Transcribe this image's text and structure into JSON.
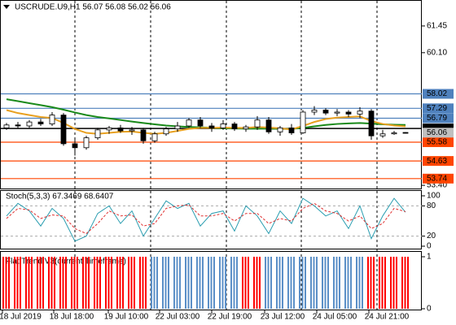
{
  "chart_data": [
    {
      "type": "candlestick",
      "title": "USCRUDE.U9,H1  56.07 56.08 56.02 56.06",
      "open": [
        56.3,
        56.45,
        56.4,
        56.6,
        56.5,
        56.95,
        55.5,
        55.3,
        55.8,
        56.2,
        56.3,
        56.15,
        56.2,
        55.65,
        56.0,
        56.25,
        56.4,
        56.7,
        56.4,
        56.3,
        56.5,
        56.25,
        56.35,
        56.7,
        56.1,
        56.3,
        56.05,
        57.1,
        57.2,
        57.05,
        57.1,
        57.0,
        57.15,
        55.9,
        56.0,
        56.07
      ],
      "high": [
        56.55,
        56.6,
        56.7,
        56.75,
        57.1,
        57.05,
        55.7,
        55.9,
        56.3,
        56.4,
        56.45,
        56.35,
        56.3,
        56.1,
        56.35,
        56.6,
        56.8,
        56.85,
        56.55,
        56.7,
        56.6,
        56.45,
        56.9,
        56.85,
        56.4,
        56.5,
        57.2,
        57.4,
        57.3,
        57.25,
        57.2,
        57.35,
        57.25,
        56.2,
        56.15,
        56.08
      ],
      "low": [
        56.2,
        56.3,
        56.3,
        56.4,
        56.4,
        55.4,
        54.9,
        55.2,
        55.7,
        56.0,
        56.05,
        55.95,
        55.5,
        55.55,
        55.9,
        56.1,
        56.3,
        56.3,
        56.1,
        56.2,
        56.15,
        56.1,
        56.2,
        56.0,
        55.9,
        55.95,
        56.0,
        56.95,
        56.95,
        56.9,
        56.85,
        56.8,
        55.7,
        55.8,
        55.95,
        56.02
      ],
      "close": [
        56.45,
        56.4,
        56.6,
        56.5,
        56.95,
        55.5,
        55.3,
        55.8,
        56.2,
        56.3,
        56.15,
        56.2,
        55.65,
        56.0,
        56.25,
        56.4,
        56.7,
        56.4,
        56.3,
        56.5,
        56.25,
        56.35,
        56.7,
        56.1,
        56.3,
        56.05,
        57.1,
        57.2,
        57.05,
        57.1,
        57.0,
        57.15,
        55.9,
        56.0,
        56.05,
        56.06
      ],
      "up_color": "#ffffff",
      "down_color": "#000000",
      "overlays": [
        {
          "color": "#1a8a1a",
          "values": [
            57.75,
            57.65,
            57.55,
            57.45,
            57.35,
            57.22,
            57.08,
            56.95,
            56.85,
            56.78,
            56.7,
            56.62,
            56.55,
            56.48,
            56.42,
            56.38,
            56.35,
            56.33,
            56.3,
            56.28,
            56.27,
            56.26,
            56.26,
            56.26,
            56.25,
            56.25,
            56.3,
            56.38,
            56.45,
            56.5,
            56.53,
            56.55,
            56.52,
            56.48,
            56.46,
            56.45
          ]
        },
        {
          "color": "#e8a020",
          "values": [
            57.2,
            57.05,
            56.95,
            56.85,
            56.8,
            56.55,
            56.25,
            56.05,
            56.0,
            56.05,
            56.1,
            56.12,
            56.05,
            56.0,
            56.05,
            56.15,
            56.25,
            56.3,
            56.3,
            56.32,
            56.3,
            56.3,
            56.35,
            56.32,
            56.28,
            56.22,
            56.4,
            56.6,
            56.75,
            56.82,
            56.85,
            56.88,
            56.65,
            56.5,
            56.42,
            56.38
          ]
        }
      ],
      "levels": [
        {
          "value": 58.02,
          "color": "#4f81bd"
        },
        {
          "value": 57.29,
          "color": "#4f81bd"
        },
        {
          "value": 56.79,
          "color": "#4f81bd"
        },
        {
          "value": 56.27,
          "color": "#000000"
        },
        {
          "value": 55.58,
          "color": "#ff4500"
        },
        {
          "value": 54.63,
          "color": "#ff4500"
        },
        {
          "value": 53.74,
          "color": "#ff4500"
        }
      ],
      "last_price": 56.06,
      "ylim": [
        53.24,
        62.72
      ],
      "yticks": [
        {
          "value": 53.4,
          "label": "53.40"
        },
        {
          "value": 60.1,
          "label": "60.10"
        },
        61.45
      ]
    },
    {
      "type": "line",
      "title": "Stoch(5,3,3) 67.3469 68.6407",
      "k": {
        "color": "#2a9db0",
        "values": [
          60,
          85,
          70,
          40,
          75,
          55,
          10,
          20,
          65,
          80,
          45,
          70,
          20,
          55,
          90,
          75,
          85,
          40,
          65,
          70,
          30,
          80,
          60,
          25,
          70,
          45,
          95,
          80,
          60,
          70,
          35,
          80,
          15,
          60,
          95,
          67.3469
        ]
      },
      "d": {
        "color": "#e03030",
        "values": [
          55,
          75,
          72,
          55,
          62,
          60,
          35,
          25,
          45,
          70,
          60,
          62,
          40,
          45,
          75,
          80,
          82,
          60,
          60,
          65,
          50,
          65,
          65,
          45,
          55,
          50,
          75,
          85,
          70,
          65,
          50,
          60,
          35,
          45,
          75,
          68.6407
        ]
      },
      "ylim": [
        0,
        100
      ],
      "yticks": [
        0,
        20,
        80,
        100
      ]
    },
    {
      "type": "bar",
      "title": "Flat Trend V3(current Timeframe)",
      "values": [
        1,
        1,
        1,
        1,
        1,
        1,
        1,
        1,
        1,
        1,
        1,
        1,
        1,
        1,
        1,
        1,
        1,
        1,
        1,
        1,
        1,
        1,
        1,
        1,
        1,
        1,
        1,
        1,
        1,
        1,
        1,
        1,
        1,
        1,
        1,
        1
      ],
      "bar_colors": [
        "#ff0000",
        "#ff0000",
        "#ff0000",
        "#ff0000",
        "#ff0000",
        "#ff0000",
        "#ff0000",
        "#ff0000",
        "#ff0000",
        "#ff0000",
        "#ff0000",
        "#ff0000",
        "#ff0000",
        "#5b8fc7",
        "#5b8fc7",
        "#5b8fc7",
        "#5b8fc7",
        "#5b8fc7",
        "#5b8fc7",
        "#5b8fc7",
        "#5b8fc7",
        "#ff0000",
        "#ff0000",
        "#5b8fc7",
        "#5b8fc7",
        "#5b8fc7",
        "#5b8fc7",
        "#5b8fc7",
        "#5b8fc7",
        "#5b8fc7",
        "#5b8fc7",
        "#5b8fc7",
        "#ff0000",
        "#ff0000",
        "#ff0000",
        "#ff0000"
      ],
      "ylim": [
        0,
        1
      ],
      "yticks": [
        0,
        1
      ],
      "time_labels": [
        "18 Jul 2019",
        "18 Jul 18:00",
        "19 Jul 10:00",
        "22 Jul 03:00",
        "22 Jul 19:00",
        "23 Jul 12:00",
        "24 Jul 05:00",
        "24 Jul 21:00"
      ]
    }
  ]
}
